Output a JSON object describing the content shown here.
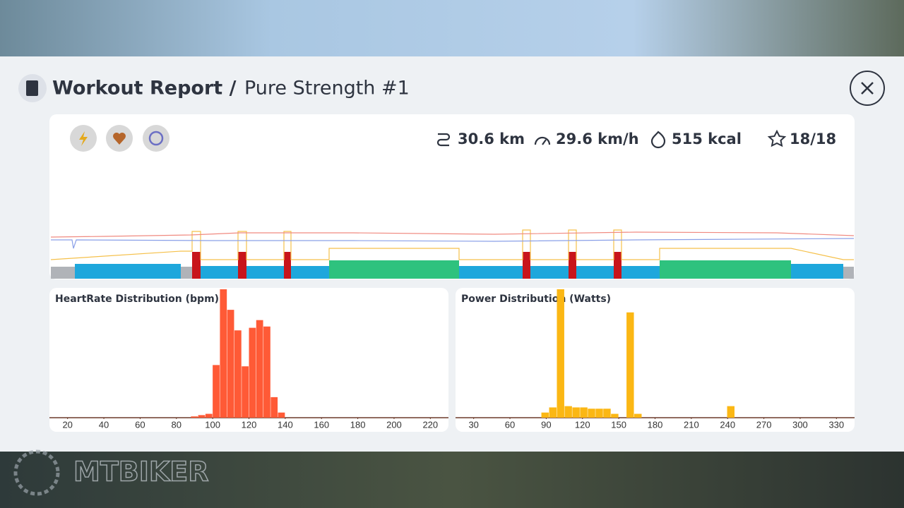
{
  "header": {
    "title": "Workout Report /",
    "subtitle": "Pure Strength #1"
  },
  "stats": {
    "distance": "30.6 km",
    "speed": "29.6 km/h",
    "energy": "515 kcal",
    "intervals": "18/18"
  },
  "watermark": "MTBIKER",
  "chart_data": [
    {
      "type": "histogram",
      "title": "HeartRate Distribution (bpm)",
      "color": "#ff5a36",
      "bins": [
        88,
        92,
        96,
        100,
        104,
        108,
        112,
        116,
        120,
        124,
        128,
        132,
        136,
        140
      ],
      "values": [
        1,
        2,
        3,
        41,
        100,
        84,
        68,
        40,
        70,
        76,
        71,
        16,
        4
      ],
      "xlim": [
        10,
        230
      ],
      "xticks": [
        20,
        40,
        60,
        80,
        100,
        120,
        140,
        160,
        180,
        200,
        220
      ],
      "ylim": [
        0,
        100
      ]
    },
    {
      "type": "histogram",
      "title": "Power Distribution (Watts)",
      "color": "#fbb714",
      "bins": [
        86,
        92.4,
        98.8,
        105.2,
        111.6,
        118,
        124.4,
        130.8,
        137.2,
        143.6,
        150,
        156.4,
        162.8,
        169.2,
        175.6,
        182,
        188.4,
        194.8,
        201.2,
        207.6,
        214,
        220.4,
        226.8,
        233.2,
        239.6,
        246
      ],
      "values": [
        4,
        8,
        100,
        9,
        8,
        8,
        7,
        7,
        7,
        3,
        0,
        82,
        3,
        0,
        0,
        0,
        0,
        0,
        0,
        0,
        0,
        0,
        0,
        0,
        9
      ],
      "xlim": [
        15,
        345
      ],
      "xticks": [
        30,
        60,
        90,
        120,
        150,
        180,
        210,
        240,
        270,
        300,
        330
      ],
      "ylim": [
        0,
        100
      ]
    }
  ]
}
